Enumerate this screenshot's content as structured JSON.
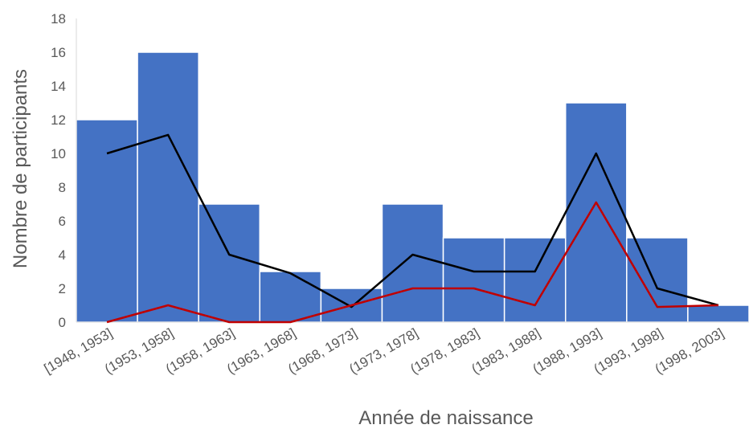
{
  "chart_data": {
    "type": "bar",
    "categories": [
      "[1948, 1953]",
      "(1953, 1958]",
      "(1958, 1963]",
      "(1963, 1968]",
      "(1968, 1973]",
      "(1973, 1978]",
      "(1978, 1983]",
      "(1983, 1988]",
      "(1988, 1993]",
      "(1993, 1998]",
      "(1998, 2003]"
    ],
    "values": [
      12,
      16,
      7,
      3,
      2,
      7,
      5,
      5,
      13,
      5,
      1
    ],
    "lines": [
      {
        "color": "#000000",
        "values": [
          10,
          11.1,
          4,
          2.9,
          0.9,
          4,
          3,
          3,
          10,
          2,
          1
        ]
      },
      {
        "color": "#C00000",
        "values": [
          0,
          1,
          0,
          0,
          1,
          2,
          2,
          1,
          7.1,
          0.9,
          1
        ]
      }
    ],
    "xlabel": "Année de naissance",
    "ylabel": "Nombre de participants",
    "ylim": [
      0,
      18
    ],
    "yticks": [
      0,
      2,
      4,
      6,
      8,
      10,
      12,
      14,
      16,
      18
    ],
    "bar_color": "#4472C4",
    "grid": false
  }
}
